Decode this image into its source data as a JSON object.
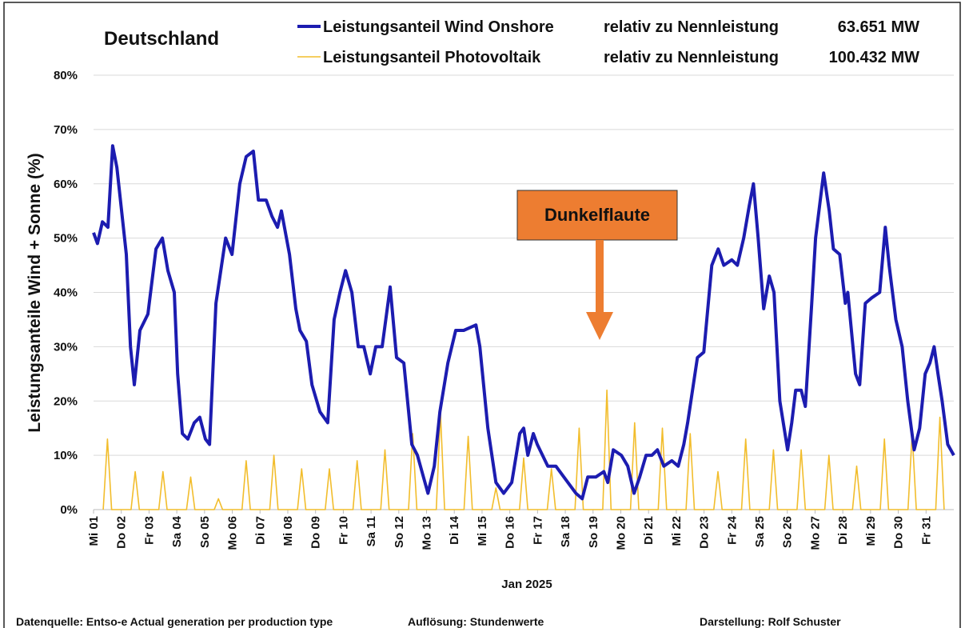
{
  "chart_data": {
    "type": "line",
    "title": "Deutschland",
    "y_label": "Leistungsanteile Wind + Sonne (%)",
    "x_label": "Jan 2025",
    "xlim": [
      1,
      32
    ],
    "xticks": [
      {
        "value": 1,
        "label": "Mi 01"
      },
      {
        "value": 2,
        "label": "Do 02"
      },
      {
        "value": 3,
        "label": "Fr 03"
      },
      {
        "value": 4,
        "label": "Sa 04"
      },
      {
        "value": 5,
        "label": "So 05"
      },
      {
        "value": 6,
        "label": "Mo 06"
      },
      {
        "value": 7,
        "label": "Di 07"
      },
      {
        "value": 8,
        "label": "Mi 08"
      },
      {
        "value": 9,
        "label": "Do 09"
      },
      {
        "value": 10,
        "label": "Fr 10"
      },
      {
        "value": 11,
        "label": "Sa 11"
      },
      {
        "value": 12,
        "label": "So 12"
      },
      {
        "value": 13,
        "label": "Mo 13"
      },
      {
        "value": 14,
        "label": "Di 14"
      },
      {
        "value": 15,
        "label": "Mi 15"
      },
      {
        "value": 16,
        "label": "Do 16"
      },
      {
        "value": 17,
        "label": "Fr 17"
      },
      {
        "value": 18,
        "label": "Sa 18"
      },
      {
        "value": 19,
        "label": "So 19"
      },
      {
        "value": 20,
        "label": "Mo 20"
      },
      {
        "value": 21,
        "label": "Di 21"
      },
      {
        "value": 22,
        "label": "Mi 22"
      },
      {
        "value": 23,
        "label": "Do 23"
      },
      {
        "value": 24,
        "label": "Fr 24"
      },
      {
        "value": 25,
        "label": "Sa 25"
      },
      {
        "value": 26,
        "label": "So 26"
      },
      {
        "value": 27,
        "label": "Mo 27"
      },
      {
        "value": 28,
        "label": "Di 28"
      },
      {
        "value": 29,
        "label": "Mi 29"
      },
      {
        "value": 30,
        "label": "Do 30"
      },
      {
        "value": 31,
        "label": "Fr 31"
      }
    ],
    "ylim": [
      0,
      80
    ],
    "yticks": [
      {
        "value": 0,
        "label": "0%"
      },
      {
        "value": 10,
        "label": "10%"
      },
      {
        "value": 20,
        "label": "20%"
      },
      {
        "value": 30,
        "label": "30%"
      },
      {
        "value": 40,
        "label": "40%"
      },
      {
        "value": 50,
        "label": "50%"
      },
      {
        "value": 60,
        "label": "60%"
      },
      {
        "value": 70,
        "label": "70%"
      },
      {
        "value": 80,
        "label": "80%"
      }
    ],
    "grid": true,
    "series": [
      {
        "name": "Leistungsanteil Wind Onshore",
        "note": "relativ zu Nennleistung",
        "capacity": "63.651 MW",
        "color": "#1c1cb0",
        "width": 4,
        "x": [
          1.0,
          1.14,
          1.32,
          1.52,
          1.69,
          1.84,
          2.01,
          2.18,
          2.33,
          2.47,
          2.67,
          2.96,
          3.25,
          3.48,
          3.68,
          3.91,
          4.03,
          4.2,
          4.4,
          4.63,
          4.83,
          5.03,
          5.18,
          5.41,
          5.76,
          5.99,
          6.27,
          6.5,
          6.76,
          6.94,
          7.22,
          7.43,
          7.63,
          7.77,
          8.06,
          8.29,
          8.44,
          8.67,
          8.87,
          9.16,
          9.44,
          9.67,
          9.88,
          10.08,
          10.31,
          10.54,
          10.74,
          10.97,
          11.17,
          11.4,
          11.69,
          11.92,
          12.18,
          12.47,
          12.67,
          13.05,
          13.28,
          13.48,
          13.77,
          14.05,
          14.34,
          14.78,
          14.92,
          15.21,
          15.5,
          15.78,
          16.07,
          16.36,
          16.5,
          16.65,
          16.85,
          16.99,
          17.37,
          17.66,
          17.95,
          18.38,
          18.61,
          18.81,
          19.1,
          19.39,
          19.53,
          19.73,
          20.02,
          20.25,
          20.48,
          20.68,
          20.91,
          21.12,
          21.32,
          21.55,
          21.84,
          22.07,
          22.27,
          22.41,
          22.76,
          22.99,
          23.28,
          23.51,
          23.71,
          24.0,
          24.2,
          24.43,
          24.63,
          24.78,
          24.95,
          25.15,
          25.35,
          25.52,
          25.73,
          26.01,
          26.16,
          26.3,
          26.5,
          26.65,
          26.88,
          27.02,
          27.31,
          27.51,
          27.66,
          27.89,
          28.09,
          28.18,
          28.46,
          28.61,
          28.81,
          29.04,
          29.33,
          29.53,
          29.67,
          29.91,
          30.14,
          30.34,
          30.57,
          30.77,
          30.97,
          31.14,
          31.29,
          31.43,
          31.58,
          31.78,
          32.0
        ],
        "values": [
          51,
          49,
          53,
          52,
          67,
          63,
          55,
          47,
          30,
          23,
          33,
          36,
          48,
          50,
          44,
          40,
          25,
          14,
          13,
          16,
          17,
          13,
          12,
          38,
          50,
          47,
          60,
          65,
          66,
          57,
          57,
          54,
          52,
          55,
          47,
          37,
          33,
          31,
          23,
          18,
          16,
          35,
          40,
          44,
          40,
          30,
          30,
          25,
          30,
          30,
          41,
          28,
          27,
          12,
          10,
          3,
          8,
          18,
          27,
          33,
          33,
          34,
          30,
          15,
          5,
          3,
          5,
          14,
          15,
          10,
          14,
          12,
          8,
          8,
          6,
          3,
          2,
          6,
          6,
          7,
          5,
          11,
          10,
          8,
          3,
          6,
          10,
          10,
          11,
          8,
          9,
          8,
          12,
          16,
          28,
          29,
          45,
          48,
          45,
          46,
          45,
          50,
          56,
          60,
          50,
          37,
          43,
          40,
          20,
          11,
          16,
          22,
          22,
          19,
          38,
          50,
          62,
          55,
          48,
          47,
          38,
          40,
          25,
          23,
          38,
          39,
          40,
          52,
          45,
          35,
          30,
          20,
          11,
          15,
          25,
          27,
          30,
          25,
          20,
          12,
          10
        ]
      },
      {
        "name": "Leistungsanteil Photovoltaik",
        "note": "relativ zu Nennleistung",
        "capacity": "100.432 MW",
        "color": "#f2bd2c",
        "width": 1.6,
        "x": [
          1.35,
          1.5,
          1.65,
          2.35,
          2.5,
          2.65,
          3.35,
          3.5,
          3.65,
          4.35,
          4.5,
          4.65,
          5.35,
          5.5,
          5.65,
          6.35,
          6.5,
          6.65,
          7.35,
          7.5,
          7.65,
          8.35,
          8.5,
          8.65,
          9.35,
          9.5,
          9.65,
          10.35,
          10.5,
          10.65,
          11.35,
          11.5,
          11.65,
          12.35,
          12.5,
          12.65,
          13.35,
          13.5,
          13.65,
          14.35,
          14.5,
          14.65,
          15.35,
          15.5,
          15.65,
          16.35,
          16.5,
          16.65,
          17.35,
          17.5,
          17.65,
          18.35,
          18.5,
          18.65,
          19.35,
          19.5,
          19.65,
          20.35,
          20.5,
          20.65,
          21.35,
          21.5,
          21.65,
          22.35,
          22.5,
          22.65,
          23.35,
          23.5,
          23.65,
          24.35,
          24.5,
          24.65,
          25.35,
          25.5,
          25.65,
          26.35,
          26.5,
          26.65,
          27.35,
          27.5,
          27.65,
          28.35,
          28.5,
          28.65,
          29.35,
          29.5,
          29.65,
          30.35,
          30.5,
          30.65,
          31.35,
          31.5,
          31.65
        ],
        "values": [
          0,
          13,
          0,
          0,
          7,
          0,
          0,
          7,
          0,
          0,
          6,
          0,
          0,
          2,
          0,
          0,
          9,
          0,
          0,
          10,
          0,
          0,
          7.5,
          0,
          0,
          7.5,
          0,
          0,
          9,
          0,
          0,
          11,
          0,
          0,
          14,
          0,
          0,
          18,
          0,
          0,
          13.5,
          0,
          0,
          4,
          0,
          0,
          9.5,
          0,
          0,
          7.5,
          0,
          0,
          15,
          0,
          0,
          22,
          0,
          0,
          16,
          0,
          0,
          15,
          0,
          0,
          14,
          0,
          0,
          7,
          0,
          0,
          13,
          0,
          0,
          11,
          0,
          0,
          11,
          0,
          0,
          10,
          0,
          0,
          8,
          0,
          0,
          13,
          0,
          0,
          14,
          0,
          0,
          17,
          0
        ]
      }
    ],
    "annotations": [
      {
        "text": "Dunkelflaute"
      }
    ],
    "footnotes": [
      "Datenquelle: Entso-e  Actual generation per production type",
      "Auflösung: Stundenwerte",
      "Darstellung:  Rolf Schuster"
    ]
  }
}
